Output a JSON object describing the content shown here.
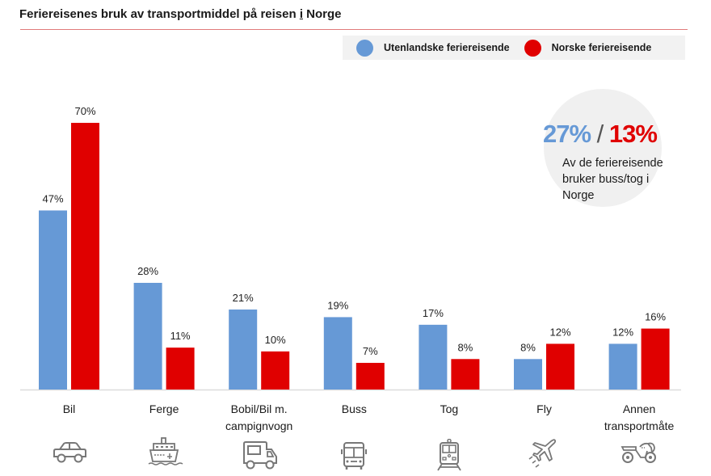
{
  "header": {
    "title_before": "Feriereisenes bruk av transportmiddel på reisen ",
    "title_underlined": "i",
    "title_after": " Norge"
  },
  "legend": {
    "items": [
      {
        "label": "Utenlandske feriereisende",
        "color": "#6699d6"
      },
      {
        "label": "Norske feriereisende",
        "color": "#e00000"
      }
    ]
  },
  "callout": {
    "value_foreign": "27%",
    "separator": "/",
    "value_norwegian": "13%",
    "text": "Av de feriereisende bruker buss/tog i Norge"
  },
  "chart_data": {
    "type": "bar",
    "title": "Feriereisenes bruk av transportmiddel på reisen i Norge",
    "xlabel": "",
    "ylabel": "",
    "ylim": [
      0,
      70
    ],
    "grid": false,
    "legend_position": "top-right",
    "categories": [
      "Bil",
      "Ferge",
      "Bobil/Bil m. campignvogn",
      "Buss",
      "Tog",
      "Fly",
      "Annen transportmåte"
    ],
    "category_label_lines": [
      [
        "Bil"
      ],
      [
        "Ferge"
      ],
      [
        "Bobil/Bil m.",
        "campignvogn"
      ],
      [
        "Buss"
      ],
      [
        "Tog"
      ],
      [
        "Fly"
      ],
      [
        "Annen",
        "transportmåte"
      ]
    ],
    "category_icons": [
      "car-icon",
      "ferry-icon",
      "camper-van-icon",
      "bus-icon",
      "train-icon",
      "airplane-icon",
      "motorcycle-icon"
    ],
    "series": [
      {
        "name": "Utenlandske feriereisende",
        "color": "#6699d6",
        "values": [
          47,
          28,
          21,
          19,
          17,
          8,
          12
        ],
        "labels": [
          "47%",
          "28%",
          "21%",
          "19%",
          "17%",
          "8%",
          "12%"
        ]
      },
      {
        "name": "Norske feriereisende",
        "color": "#e00000",
        "values": [
          70,
          11,
          10,
          7,
          8,
          12,
          16
        ],
        "labels": [
          "70%",
          "11%",
          "10%",
          "7%",
          "8%",
          "12%",
          "16%"
        ]
      }
    ]
  }
}
